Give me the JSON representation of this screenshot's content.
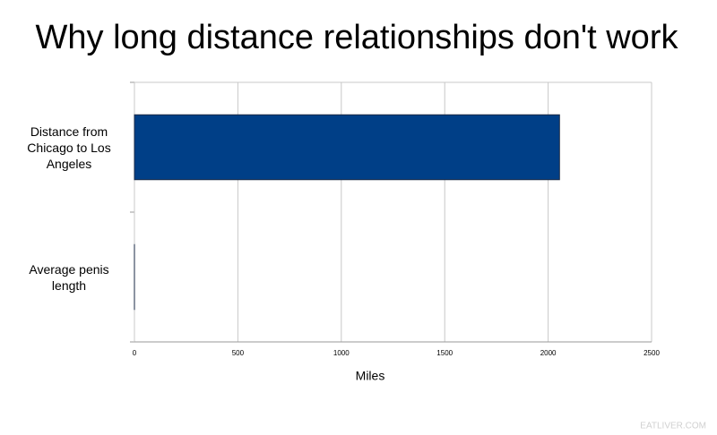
{
  "chart_data": {
    "type": "bar",
    "orientation": "horizontal",
    "title": "Why long distance relationships don't work",
    "categories": [
      "Distance from Chicago to Los Angeles",
      "Average penis length"
    ],
    "values": [
      2055,
      0.0001
    ],
    "color": "#003f87",
    "xlabel": "Miles",
    "xlim": [
      0,
      2500
    ],
    "xticks": [
      0,
      500,
      1000,
      1500,
      2000,
      2500
    ],
    "grid": true,
    "watermark": "EATLIVER.COM"
  }
}
